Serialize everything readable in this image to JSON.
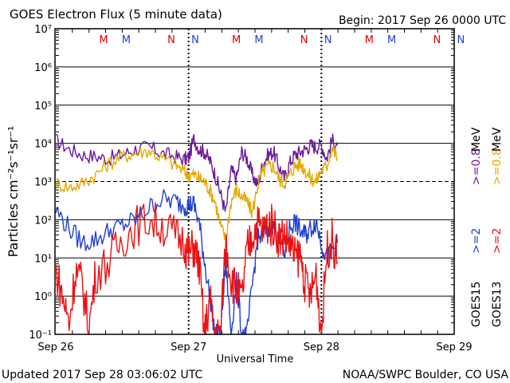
{
  "header": {
    "title": "GOES Electron Flux (5 minute data)",
    "begin": "Begin: 2017 Sep 26 0000 UTC"
  },
  "footer": {
    "updated": "Updated 2017 Sep 28 03:06:02 UTC",
    "credit": "NOAA/SWPC Boulder, CO USA"
  },
  "markers": [
    {
      "label": "M",
      "color": "#e00000",
      "day": 0.36
    },
    {
      "label": "M",
      "color": "#1f3fd0",
      "day": 0.53
    },
    {
      "label": "N",
      "color": "#e00000",
      "day": 0.87
    },
    {
      "label": "N",
      "color": "#1f3fd0",
      "day": 1.05
    },
    {
      "label": "M",
      "color": "#e00000",
      "day": 1.36
    },
    {
      "label": "M",
      "color": "#1f3fd0",
      "day": 1.53
    },
    {
      "label": "N",
      "color": "#e00000",
      "day": 1.87
    },
    {
      "label": "N",
      "color": "#1f3fd0",
      "day": 2.05
    },
    {
      "label": "M",
      "color": "#e00000",
      "day": 2.36
    },
    {
      "label": "M",
      "color": "#1f3fd0",
      "day": 2.53
    },
    {
      "label": "N",
      "color": "#e00000",
      "day": 2.87
    },
    {
      "label": "N",
      "color": "#1f3fd0",
      "day": 3.05
    }
  ],
  "legend": {
    "sat1": "GOES15",
    "sat2": "GOES13",
    "e2_label": ">=2",
    "e08_label": ">=0.8",
    "mev1": "MeV",
    "mev2": "MeV"
  },
  "chart_data": {
    "type": "line",
    "title": "GOES Electron Flux (5 minute data)",
    "xlabel": "Universal Time",
    "ylabel": "Particles cm⁻²s⁻¹sr⁻¹",
    "x_ticks": [
      "Sep 26",
      "Sep 27",
      "Sep 28",
      "Sep 29"
    ],
    "y_ticks": [
      "10⁻¹",
      "10⁰",
      "10¹",
      "10²",
      "10³",
      "10⁴",
      "10⁵",
      "10⁶",
      "10⁷"
    ],
    "x_unit": "days since 2017 Sep 26 0000 UTC",
    "xlim": [
      0,
      3
    ],
    "ylim": [
      0.1,
      10000000
    ],
    "log_y": true,
    "grid": true,
    "threshold_dashed": 1000,
    "series": [
      {
        "name": "GOES15 >=0.8 MeV",
        "color": "#6a1b9a",
        "noise": 0.05,
        "x": [
          0,
          0.1,
          0.2,
          0.3,
          0.4,
          0.5,
          0.6,
          0.7,
          0.8,
          0.9,
          0.97,
          1.0,
          1.04,
          1.08,
          1.12,
          1.16,
          1.2,
          1.24,
          1.28,
          1.32,
          1.36,
          1.4,
          1.44,
          1.48,
          1.52,
          1.56,
          1.6,
          1.64,
          1.68,
          1.72,
          1.76,
          1.8,
          1.84,
          1.88,
          1.92,
          1.96,
          2.0,
          2.04,
          2.08,
          2.12
        ],
        "y": [
          12000,
          7000,
          5000,
          4500,
          4000,
          5000,
          7000,
          8000,
          5500,
          4500,
          3800,
          4200,
          13000,
          7000,
          6000,
          3500,
          1500,
          500,
          150,
          2000,
          1200,
          6000,
          4000,
          1500,
          800,
          3000,
          5000,
          6000,
          2500,
          1200,
          3000,
          5000,
          6000,
          7000,
          9000,
          8000,
          9000,
          4000,
          12000,
          9000
        ]
      },
      {
        "name": "GOES13 >=0.8 MeV",
        "color": "#e6a800",
        "noise": 0.05,
        "x": [
          0,
          0.1,
          0.2,
          0.3,
          0.4,
          0.5,
          0.6,
          0.7,
          0.8,
          0.9,
          0.97,
          1.0,
          1.04,
          1.08,
          1.12,
          1.16,
          1.2,
          1.24,
          1.28,
          1.32,
          1.36,
          1.4,
          1.44,
          1.48,
          1.52,
          1.56,
          1.6,
          1.64,
          1.68,
          1.72,
          1.76,
          1.8,
          1.84,
          1.88,
          1.92,
          1.96,
          2.0,
          2.04,
          2.08,
          2.12
        ],
        "y": [
          900,
          700,
          900,
          1500,
          3000,
          4500,
          5500,
          6500,
          4000,
          2800,
          1800,
          1500,
          1500,
          1200,
          1000,
          600,
          300,
          70,
          30,
          300,
          600,
          400,
          300,
          150,
          800,
          1800,
          2500,
          2500,
          1200,
          900,
          1500,
          2500,
          3000,
          2000,
          1200,
          1000,
          2000,
          2500,
          8000,
          4000
        ]
      },
      {
        "name": "GOES15 >=2 MeV",
        "color": "#1f3fd0",
        "noise": 0.07,
        "x": [
          0,
          0.1,
          0.2,
          0.3,
          0.4,
          0.5,
          0.6,
          0.7,
          0.8,
          0.9,
          0.97,
          1.0,
          1.04,
          1.08,
          1.12,
          1.16,
          1.2,
          1.24,
          1.28,
          1.32,
          1.36,
          1.4,
          1.44,
          1.48,
          1.52,
          1.56,
          1.6,
          1.64,
          1.68,
          1.72,
          1.76,
          1.8,
          1.84,
          1.88,
          1.92,
          1.96,
          2.0,
          2.04,
          2.08,
          2.12
        ],
        "y": [
          180,
          60,
          25,
          30,
          50,
          70,
          100,
          200,
          350,
          300,
          230,
          250,
          250,
          80,
          8,
          1,
          0.1,
          0.1,
          8,
          0.1,
          3,
          0.1,
          0.1,
          2,
          30,
          40,
          60,
          70,
          30,
          12,
          60,
          90,
          50,
          40,
          60,
          90,
          25,
          10,
          15,
          25
        ]
      },
      {
        "name": "GOES13 >=2 MeV",
        "color": "#ee1111",
        "noise": 0.14,
        "x": [
          0,
          0.05,
          0.1,
          0.15,
          0.2,
          0.25,
          0.3,
          0.4,
          0.5,
          0.6,
          0.7,
          0.8,
          0.9,
          0.97,
          1.0,
          1.04,
          1.08,
          1.12,
          1.16,
          1.2,
          1.24,
          1.28,
          1.32,
          1.36,
          1.4,
          1.44,
          1.48,
          1.52,
          1.56,
          1.6,
          1.64,
          1.68,
          1.72,
          1.76,
          1.8,
          1.84,
          1.88,
          1.92,
          1.96,
          2.0,
          2.04,
          2.08,
          2.12
        ],
        "y": [
          5,
          1,
          0.2,
          5,
          2,
          0.15,
          4,
          8,
          30,
          70,
          100,
          70,
          40,
          25,
          12,
          20,
          6,
          0.1,
          0.8,
          0.1,
          0.1,
          30,
          3,
          1.5,
          0.8,
          15,
          40,
          80,
          50,
          80,
          70,
          35,
          40,
          25,
          10,
          12,
          2,
          1,
          4,
          0.1,
          15,
          30,
          8
        ]
      }
    ]
  }
}
